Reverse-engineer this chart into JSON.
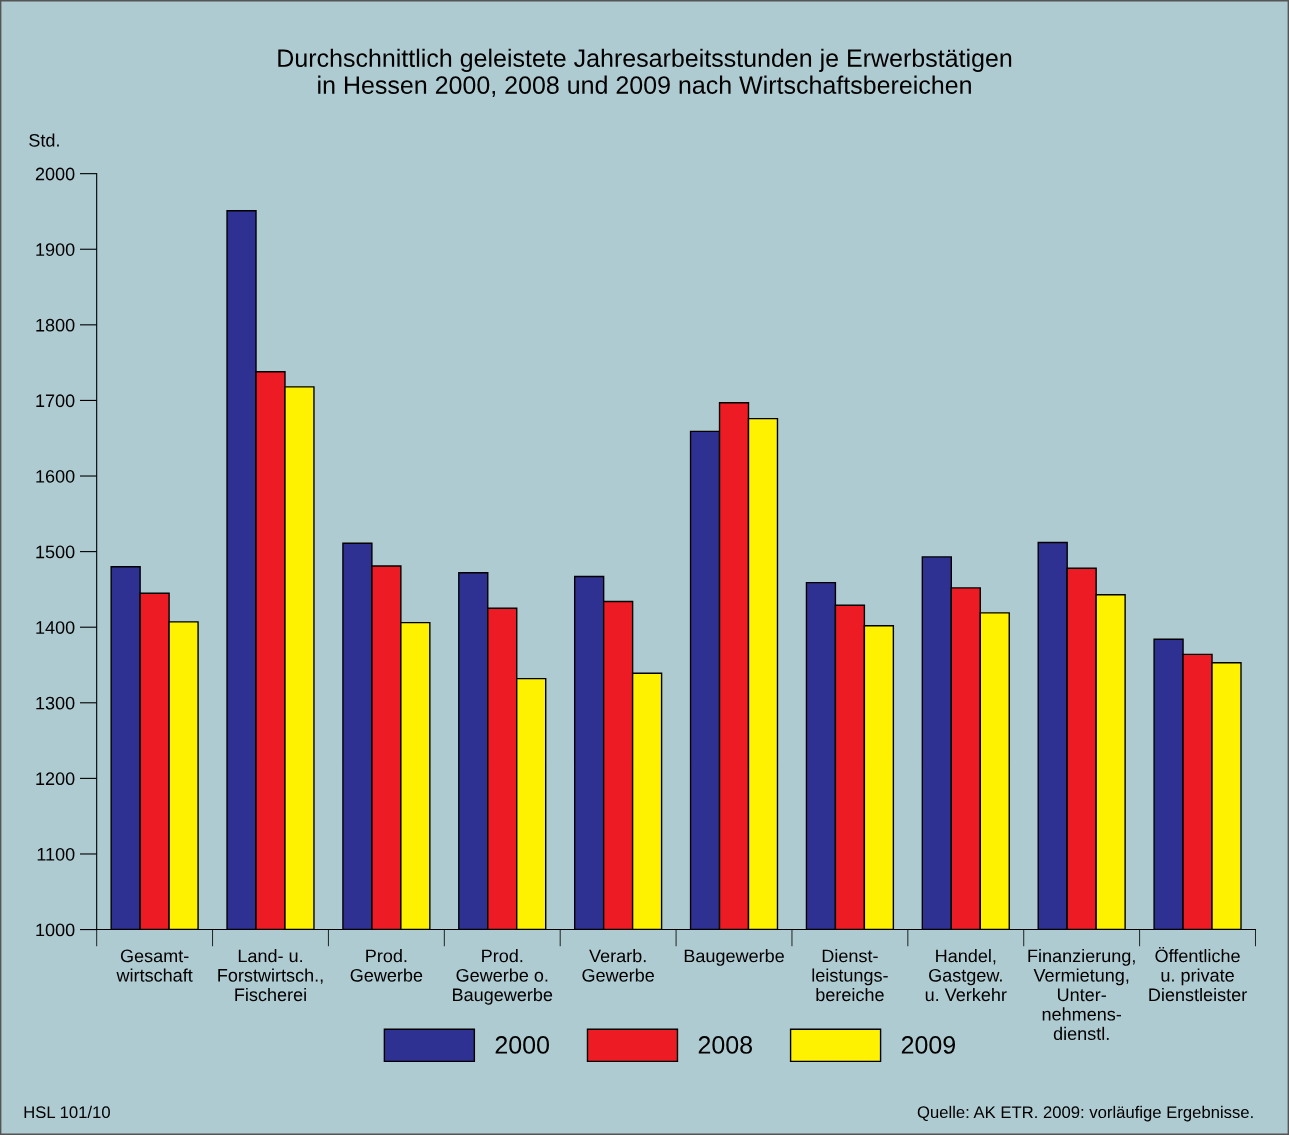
{
  "chart_data": {
    "type": "bar",
    "title": "Durchschnittlich geleistete Jahresarbeitsstunden je Erwerbstätigen\nin Hessen 2000, 2008 und 2009 nach Wirtschaftsbereichen",
    "ylabel": "Std.",
    "categories": [
      "Gesamt-\nwirtschaft",
      "Land- u.\nForstwirtsch.,\nFischerei",
      "Prod.\nGewerbe",
      "Prod.\nGewerbe o.\nBaugewerbe",
      "Verarb.\nGewerbe",
      "Baugewerbe",
      "Dienst-\nleistungs-\nbereiche",
      "Handel,\nGastgew.\nu. Verkehr",
      "Finanzierung,\nVermietung,\nUnter-\nnehmens-\ndienstl.",
      "Öffentliche\nu. private\nDienstleister"
    ],
    "series": [
      {
        "name": "2000",
        "color": "#2e3192",
        "values": [
          1480,
          1951,
          1511,
          1472,
          1467,
          1659,
          1459,
          1493,
          1512,
          1384
        ]
      },
      {
        "name": "2008",
        "color": "#ed1c24",
        "values": [
          1445,
          1738,
          1481,
          1425,
          1434,
          1697,
          1429,
          1452,
          1478,
          1364
        ]
      },
      {
        "name": "2009",
        "color": "#fff200",
        "values": [
          1407,
          1718,
          1406,
          1332,
          1339,
          1676,
          1402,
          1419,
          1443,
          1353
        ]
      }
    ],
    "ylim": [
      1000,
      2000
    ],
    "yticks": [
      1000,
      1100,
      1200,
      1300,
      1400,
      1500,
      1600,
      1700,
      1800,
      1900,
      2000
    ],
    "grid": false,
    "legend": "bottom",
    "annotations": [
      "HSL 101/10",
      "Quelle: AK ETR. 2009: vorläufige Ergebnisse."
    ]
  }
}
